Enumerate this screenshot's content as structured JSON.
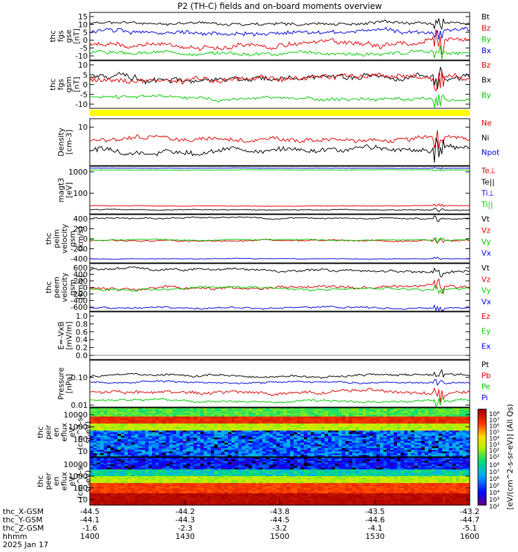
{
  "title": "P2 (TH-C) fields and on-board moments overview",
  "colors": {
    "black": "#000000",
    "red": "#e00000",
    "blue": "#0000dd",
    "green": "#00cc00",
    "yellow": "#ffff00"
  },
  "panels": [
    {
      "id": "fgs-gse",
      "ylabel": [
        "thc",
        "fgs",
        "gse",
        "[nT]"
      ],
      "yticks": [
        "15",
        "10",
        "5",
        "0",
        "-5",
        "-10"
      ],
      "ylim": [
        -10,
        17
      ],
      "legend": [
        {
          "text": "Bt",
          "color": "black"
        },
        {
          "text": "Bz",
          "color": "red"
        },
        {
          "text": "By",
          "color": "green"
        },
        {
          "text": "Bx",
          "color": "blue"
        }
      ]
    },
    {
      "id": "fgs-gsm",
      "ylabel": [
        "thc",
        "fgs",
        "gsm",
        "[nT]"
      ],
      "yticks": [
        "10",
        "5",
        "0",
        "-5",
        "-10"
      ],
      "ylim": [
        -14,
        13
      ],
      "legend": [
        {
          "text": "Bz",
          "color": "red"
        },
        {
          "text": "Bx",
          "color": "black"
        },
        {
          "text": "By",
          "color": "green"
        }
      ]
    },
    {
      "id": "density",
      "ylabel": [
        "Density",
        "[cm-3]"
      ],
      "yticks": [
        "10"
      ],
      "scale": "log",
      "legend": [
        {
          "text": "Ne",
          "color": "red"
        },
        {
          "text": "Ni",
          "color": "black"
        },
        {
          "text": "Npot",
          "color": "blue"
        }
      ]
    },
    {
      "id": "temperature",
      "ylabel": [
        "magt3",
        "[eV]"
      ],
      "yticks": [
        "1000",
        "100"
      ],
      "scale": "log",
      "legend": [
        {
          "text": "Te⊥",
          "color": "red"
        },
        {
          "text": "Te||",
          "color": "black"
        },
        {
          "text": "Ti⊥",
          "color": "blue"
        },
        {
          "text": "Ti||",
          "color": "green"
        }
      ]
    },
    {
      "id": "peim-velocity",
      "ylabel": [
        "thc",
        "peim",
        "velocity",
        "gsm",
        "[km/s]"
      ],
      "yticks": [
        "400",
        "200",
        "0",
        "-200",
        "-400"
      ],
      "ylim": [
        -500,
        500
      ],
      "legend": [
        {
          "text": "Vt",
          "color": "black"
        },
        {
          "text": "Vz",
          "color": "red"
        },
        {
          "text": "Vy",
          "color": "green"
        },
        {
          "text": "Vx",
          "color": "blue"
        }
      ]
    },
    {
      "id": "peem-velocity",
      "ylabel": [
        "thc",
        "peem",
        "velocity",
        "gsm",
        "[km/s]"
      ],
      "yticks": [
        "600",
        "400",
        "200",
        "0",
        "-200",
        "-400",
        "-600"
      ],
      "ylim": [
        -720,
        720
      ],
      "legend": [
        {
          "text": "Vt",
          "color": "black"
        },
        {
          "text": "Vz",
          "color": "red"
        },
        {
          "text": "Vy",
          "color": "green"
        },
        {
          "text": "Vx",
          "color": "blue"
        }
      ]
    },
    {
      "id": "efield",
      "ylabel": [
        "E=-VxB",
        "[mV/m]"
      ],
      "yticks": [
        "1.0",
        "0.8",
        "0.6",
        "0.4",
        "0.2",
        "0.0"
      ],
      "ylim": [
        -0.05,
        1.0
      ],
      "legend": [
        {
          "text": "Ez",
          "color": "red"
        },
        {
          "text": "Ey",
          "color": "green"
        },
        {
          "text": "Ex",
          "color": "blue"
        }
      ]
    },
    {
      "id": "pressure",
      "ylabel": [
        "Pressure",
        "[nPa]"
      ],
      "yticks": [
        "0.10",
        "0.01"
      ],
      "scale": "log",
      "legend": [
        {
          "text": "Pt",
          "color": "black"
        },
        {
          "text": "Pb",
          "color": "red"
        },
        {
          "text": "Pe",
          "color": "green"
        },
        {
          "text": "Pi",
          "color": "blue"
        }
      ]
    },
    {
      "id": "peir-eflux",
      "ylabel": [
        "thc",
        "peir",
        "en",
        "eflux",
        "eV",
        "(cm^2-s-",
        "sr-eV)"
      ],
      "yticks": [
        "10000",
        "1000",
        "100",
        "10"
      ],
      "scale": "log"
    },
    {
      "id": "peer-eflux",
      "ylabel": [
        "thc",
        "peer",
        "en",
        "eflux",
        "eV",
        "(cm^2-s-",
        "sr-eV)"
      ],
      "yticks": [
        "10000",
        "1000",
        "100",
        "10"
      ],
      "scale": "log"
    }
  ],
  "colorbar": {
    "ticks": [
      "10⁸",
      "10⁷",
      "10⁶",
      "10⁵",
      "10⁴",
      "10³",
      "10²",
      "10¹"
    ],
    "ticks_lower": [
      "10⁸",
      "10⁷",
      "10⁶",
      "10⁵",
      "10⁴",
      "10³",
      "10²"
    ],
    "label": "[eV/(cm^2-s-sr-eV)] (All Qs)"
  },
  "chart_data": {
    "type": "line",
    "title": "P2 (TH-C) fields and on-board moments overview",
    "x_time_ticks": [
      "1400",
      "1430",
      "1500",
      "1530",
      "1600"
    ],
    "x_rows": [
      {
        "label": "thc_X-GSM",
        "values": [
          "-44.5",
          "-44.2",
          "-43.8",
          "-43.5",
          "-43.2"
        ]
      },
      {
        "label": "thc_Y-GSM",
        "values": [
          "-44.1",
          "-44.3",
          "-44.5",
          "-44.6",
          "-44.7"
        ]
      },
      {
        "label": "thc_Z-GSM",
        "values": [
          "-1.6",
          "-2.3",
          "-3.2",
          "-4.1",
          "-5.1"
        ]
      },
      {
        "label": "hhmm",
        "values": [
          "1400",
          "1430",
          "1500",
          "1530",
          "1600"
        ]
      }
    ],
    "date": "2025 Jan 17",
    "series": [
      {
        "panel": 0,
        "name": "Bt",
        "color": "black",
        "base": 11,
        "amp": 2,
        "seed": 11
      },
      {
        "panel": 0,
        "name": "Bx",
        "color": "blue",
        "base": 6,
        "amp": 3,
        "seed": 12
      },
      {
        "panel": 0,
        "name": "Bz",
        "color": "red",
        "base": -1,
        "amp": 3.5,
        "seed": 13
      },
      {
        "panel": 0,
        "name": "By",
        "color": "green",
        "base": -6,
        "amp": 2.5,
        "seed": 14
      },
      {
        "panel": 1,
        "name": "Bx",
        "color": "black",
        "base": 4,
        "amp": 4,
        "seed": 21
      },
      {
        "panel": 1,
        "name": "Bz",
        "color": "red",
        "base": 3,
        "amp": 4,
        "seed": 22
      },
      {
        "panel": 1,
        "name": "By",
        "color": "green",
        "base": -8,
        "amp": 2.5,
        "seed": 23
      },
      {
        "panel": 2,
        "name": "Ne",
        "color": "red",
        "base": 0.55,
        "amp": 0.12,
        "seed": 31
      },
      {
        "panel": 2,
        "name": "Ni",
        "color": "black",
        "base": 0.35,
        "amp": 0.14,
        "seed": 32
      },
      {
        "panel": 3,
        "name": "Ti||",
        "color": "green",
        "base": 0.92,
        "amp": 0.01,
        "seed": 41
      },
      {
        "panel": 3,
        "name": "Ti⊥",
        "color": "blue",
        "base": 0.96,
        "amp": 0.008,
        "seed": 42
      },
      {
        "panel": 3,
        "name": "Te⊥",
        "color": "red",
        "base": 0.17,
        "amp": 0.015,
        "seed": 43
      },
      {
        "panel": 3,
        "name": "Te||",
        "color": "black",
        "base": 0.09,
        "amp": 0.02,
        "seed": 44
      },
      {
        "panel": 4,
        "name": "Vt",
        "color": "black",
        "base": 420,
        "amp": 35,
        "seed": 51
      },
      {
        "panel": 4,
        "name": "Vz",
        "color": "red",
        "base": -40,
        "amp": 35,
        "seed": 52
      },
      {
        "panel": 4,
        "name": "Vy",
        "color": "green",
        "base": -20,
        "amp": 30,
        "seed": 53
      },
      {
        "panel": 4,
        "name": "Vx",
        "color": "blue",
        "base": -420,
        "amp": 15,
        "seed": 54
      },
      {
        "panel": 5,
        "name": "Vt",
        "color": "black",
        "base": 520,
        "amp": 90,
        "seed": 61
      },
      {
        "panel": 5,
        "name": "Vz",
        "color": "red",
        "base": -20,
        "amp": 110,
        "seed": 62
      },
      {
        "panel": 5,
        "name": "Vy",
        "color": "green",
        "base": -40,
        "amp": 80,
        "seed": 63
      },
      {
        "panel": 5,
        "name": "Vx",
        "color": "blue",
        "base": -600,
        "amp": 70,
        "seed": 64
      },
      {
        "panel": 7,
        "name": "Pt",
        "color": "black",
        "base": 0.68,
        "amp": 0.06,
        "seed": 71
      },
      {
        "panel": 7,
        "name": "Pi",
        "color": "blue",
        "base": 0.52,
        "amp": 0.05,
        "seed": 72
      },
      {
        "panel": 7,
        "name": "Pb",
        "color": "red",
        "base": 0.3,
        "amp": 0.09,
        "seed": 73
      },
      {
        "panel": 7,
        "name": "Pe",
        "color": "green",
        "base": 0.14,
        "amp": 0.06,
        "seed": 74
      }
    ]
  }
}
